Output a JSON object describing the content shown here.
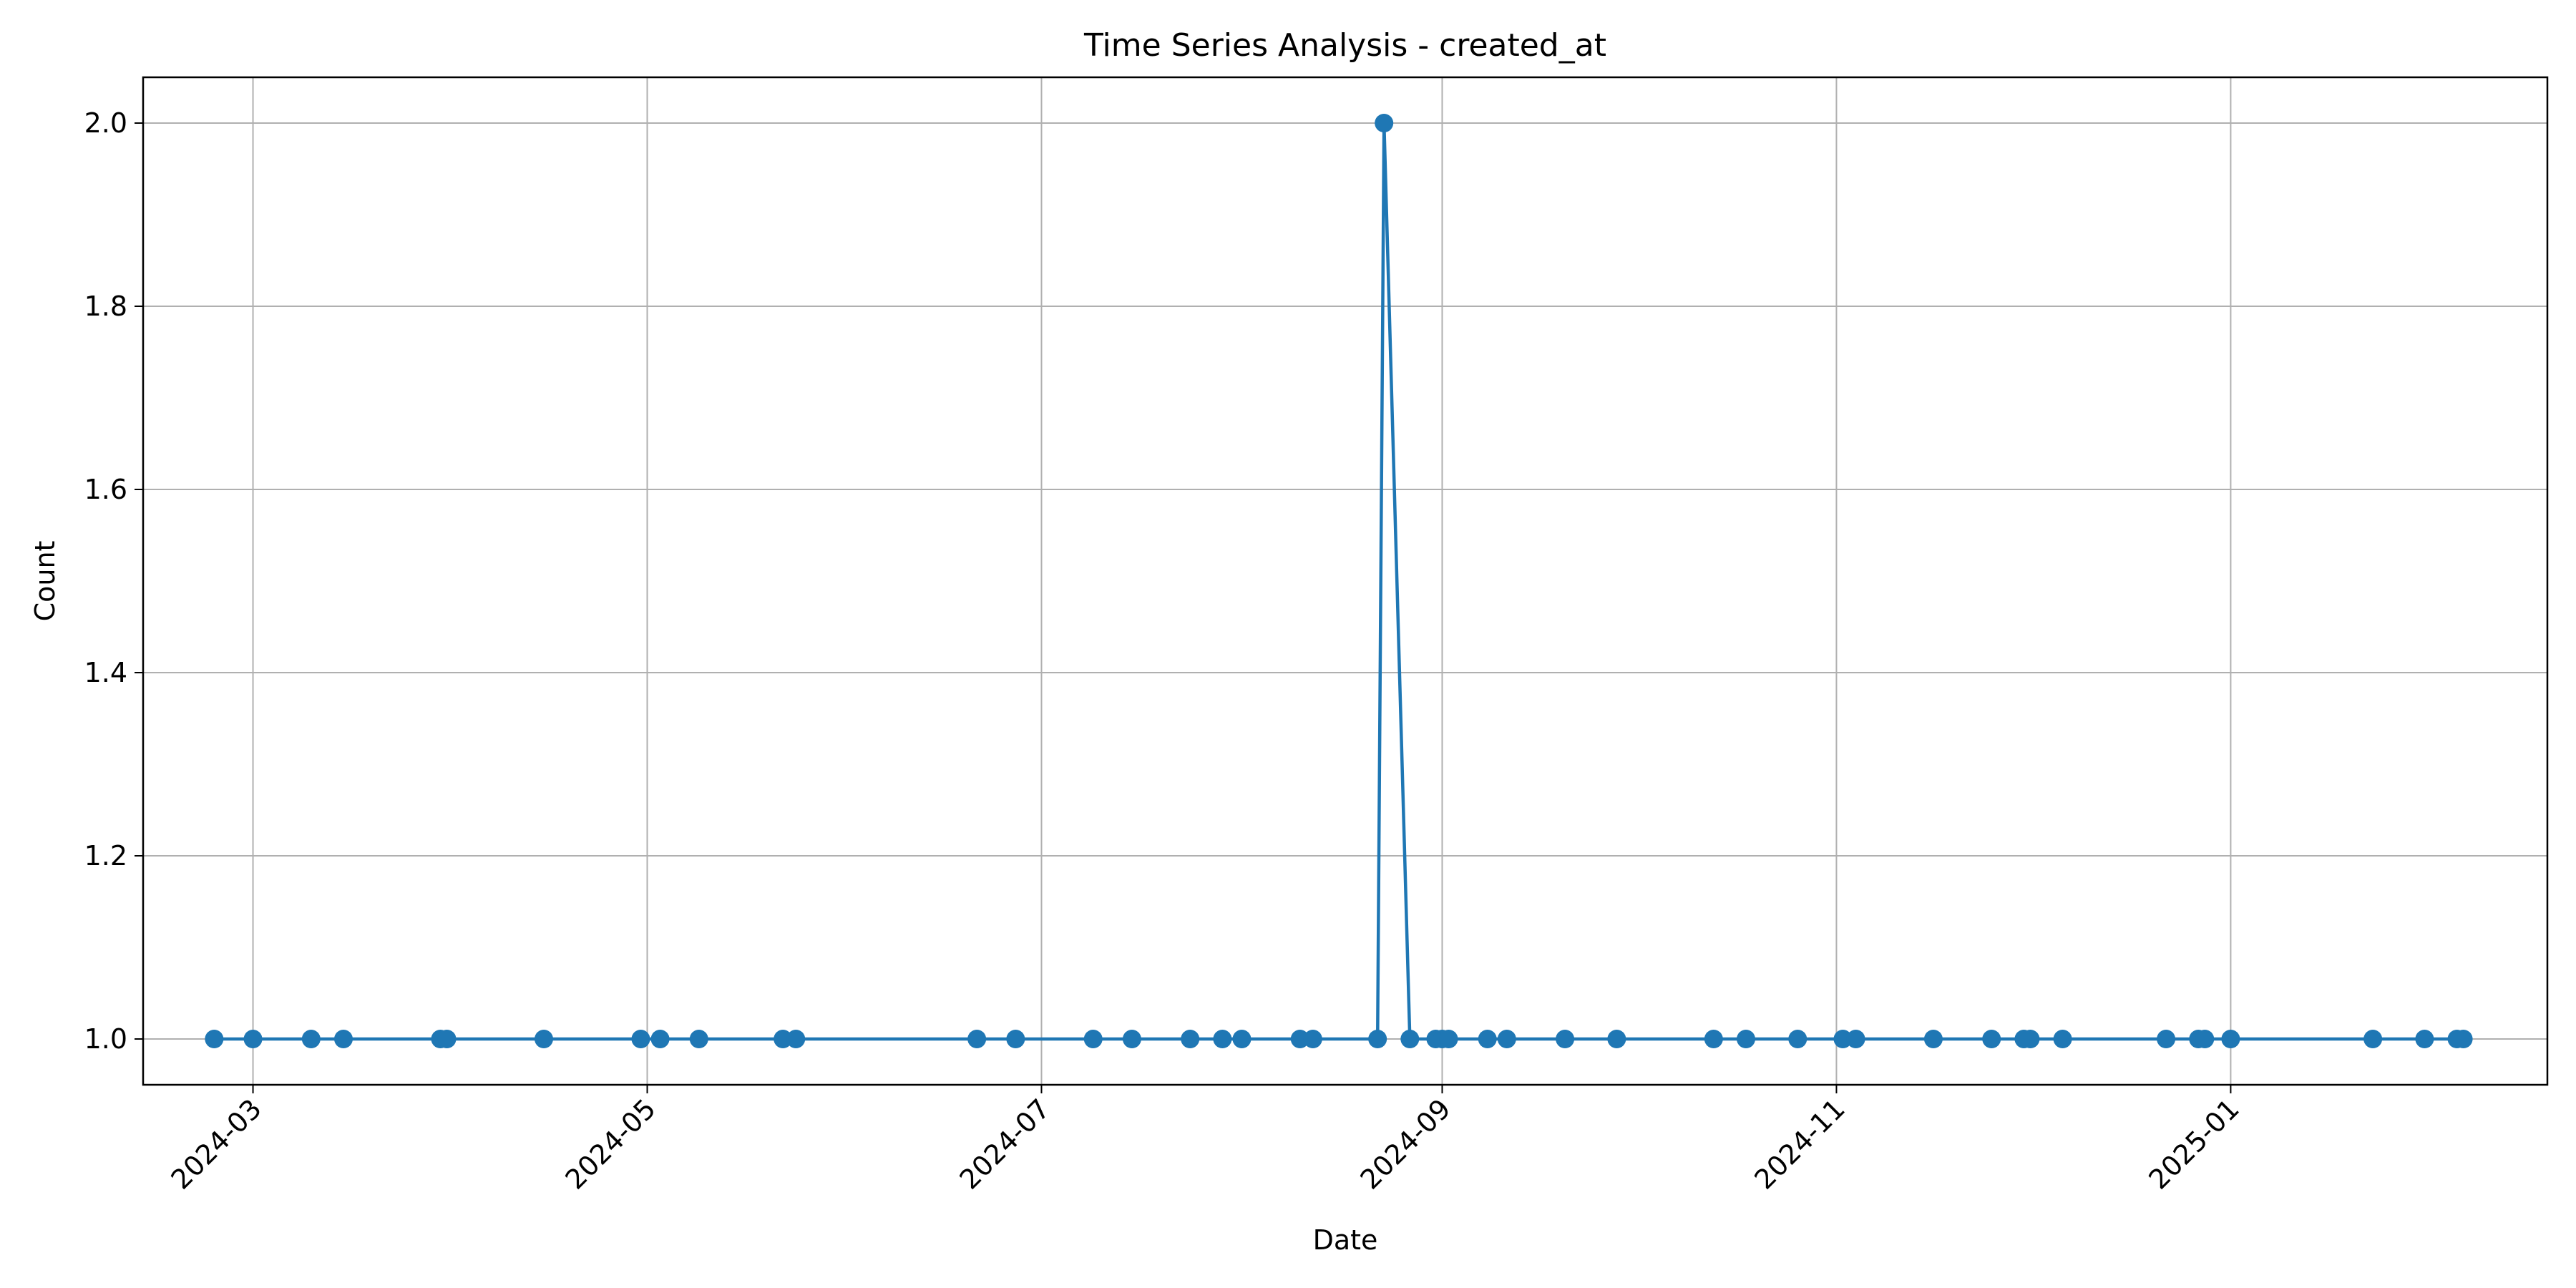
{
  "chart_data": {
    "type": "line",
    "title": "Time Series Analysis - created_at",
    "xlabel": "Date",
    "ylabel": "Count",
    "x_ticks": [
      "2024-03",
      "2024-05",
      "2024-07",
      "2024-09",
      "2024-11",
      "2025-01"
    ],
    "y_ticks": [
      "1.0",
      "1.2",
      "1.4",
      "1.6",
      "1.8",
      "2.0"
    ],
    "ylim": [
      0.95,
      2.05
    ],
    "xlim": [
      "2024-02-13",
      "2025-02-19"
    ],
    "grid": true,
    "marker": "circle",
    "color": "#1f77b4",
    "series": [
      {
        "x": [
          "2024-02-24",
          "2024-03-01",
          "2024-03-10",
          "2024-03-15",
          "2024-03-30",
          "2024-03-31",
          "2024-04-15",
          "2024-04-30",
          "2024-05-03",
          "2024-05-09",
          "2024-05-22",
          "2024-05-24",
          "2024-06-21",
          "2024-06-27",
          "2024-07-09",
          "2024-07-15",
          "2024-07-24",
          "2024-07-29",
          "2024-08-01",
          "2024-08-10",
          "2024-08-12",
          "2024-08-22",
          "2024-08-23",
          "2024-08-27",
          "2024-08-31",
          "2024-09-01",
          "2024-09-02",
          "2024-09-08",
          "2024-09-11",
          "2024-09-20",
          "2024-09-28",
          "2024-10-13",
          "2024-10-18",
          "2024-10-26",
          "2024-11-02",
          "2024-11-04",
          "2024-11-16",
          "2024-11-25",
          "2024-11-30",
          "2024-12-01",
          "2024-12-06",
          "2024-12-22",
          "2024-12-27",
          "2024-12-28",
          "2025-01-01",
          "2025-01-23",
          "2025-01-31",
          "2025-02-05",
          "2025-02-06"
        ],
        "y": [
          1,
          1,
          1,
          1,
          1,
          1,
          1,
          1,
          1,
          1,
          1,
          1,
          1,
          1,
          1,
          1,
          1,
          1,
          1,
          1,
          1,
          1,
          2,
          1,
          1,
          1,
          1,
          1,
          1,
          1,
          1,
          1,
          1,
          1,
          1,
          1,
          1,
          1,
          1,
          1,
          1,
          1,
          1,
          1,
          1,
          1,
          1,
          1,
          1
        ]
      }
    ]
  }
}
